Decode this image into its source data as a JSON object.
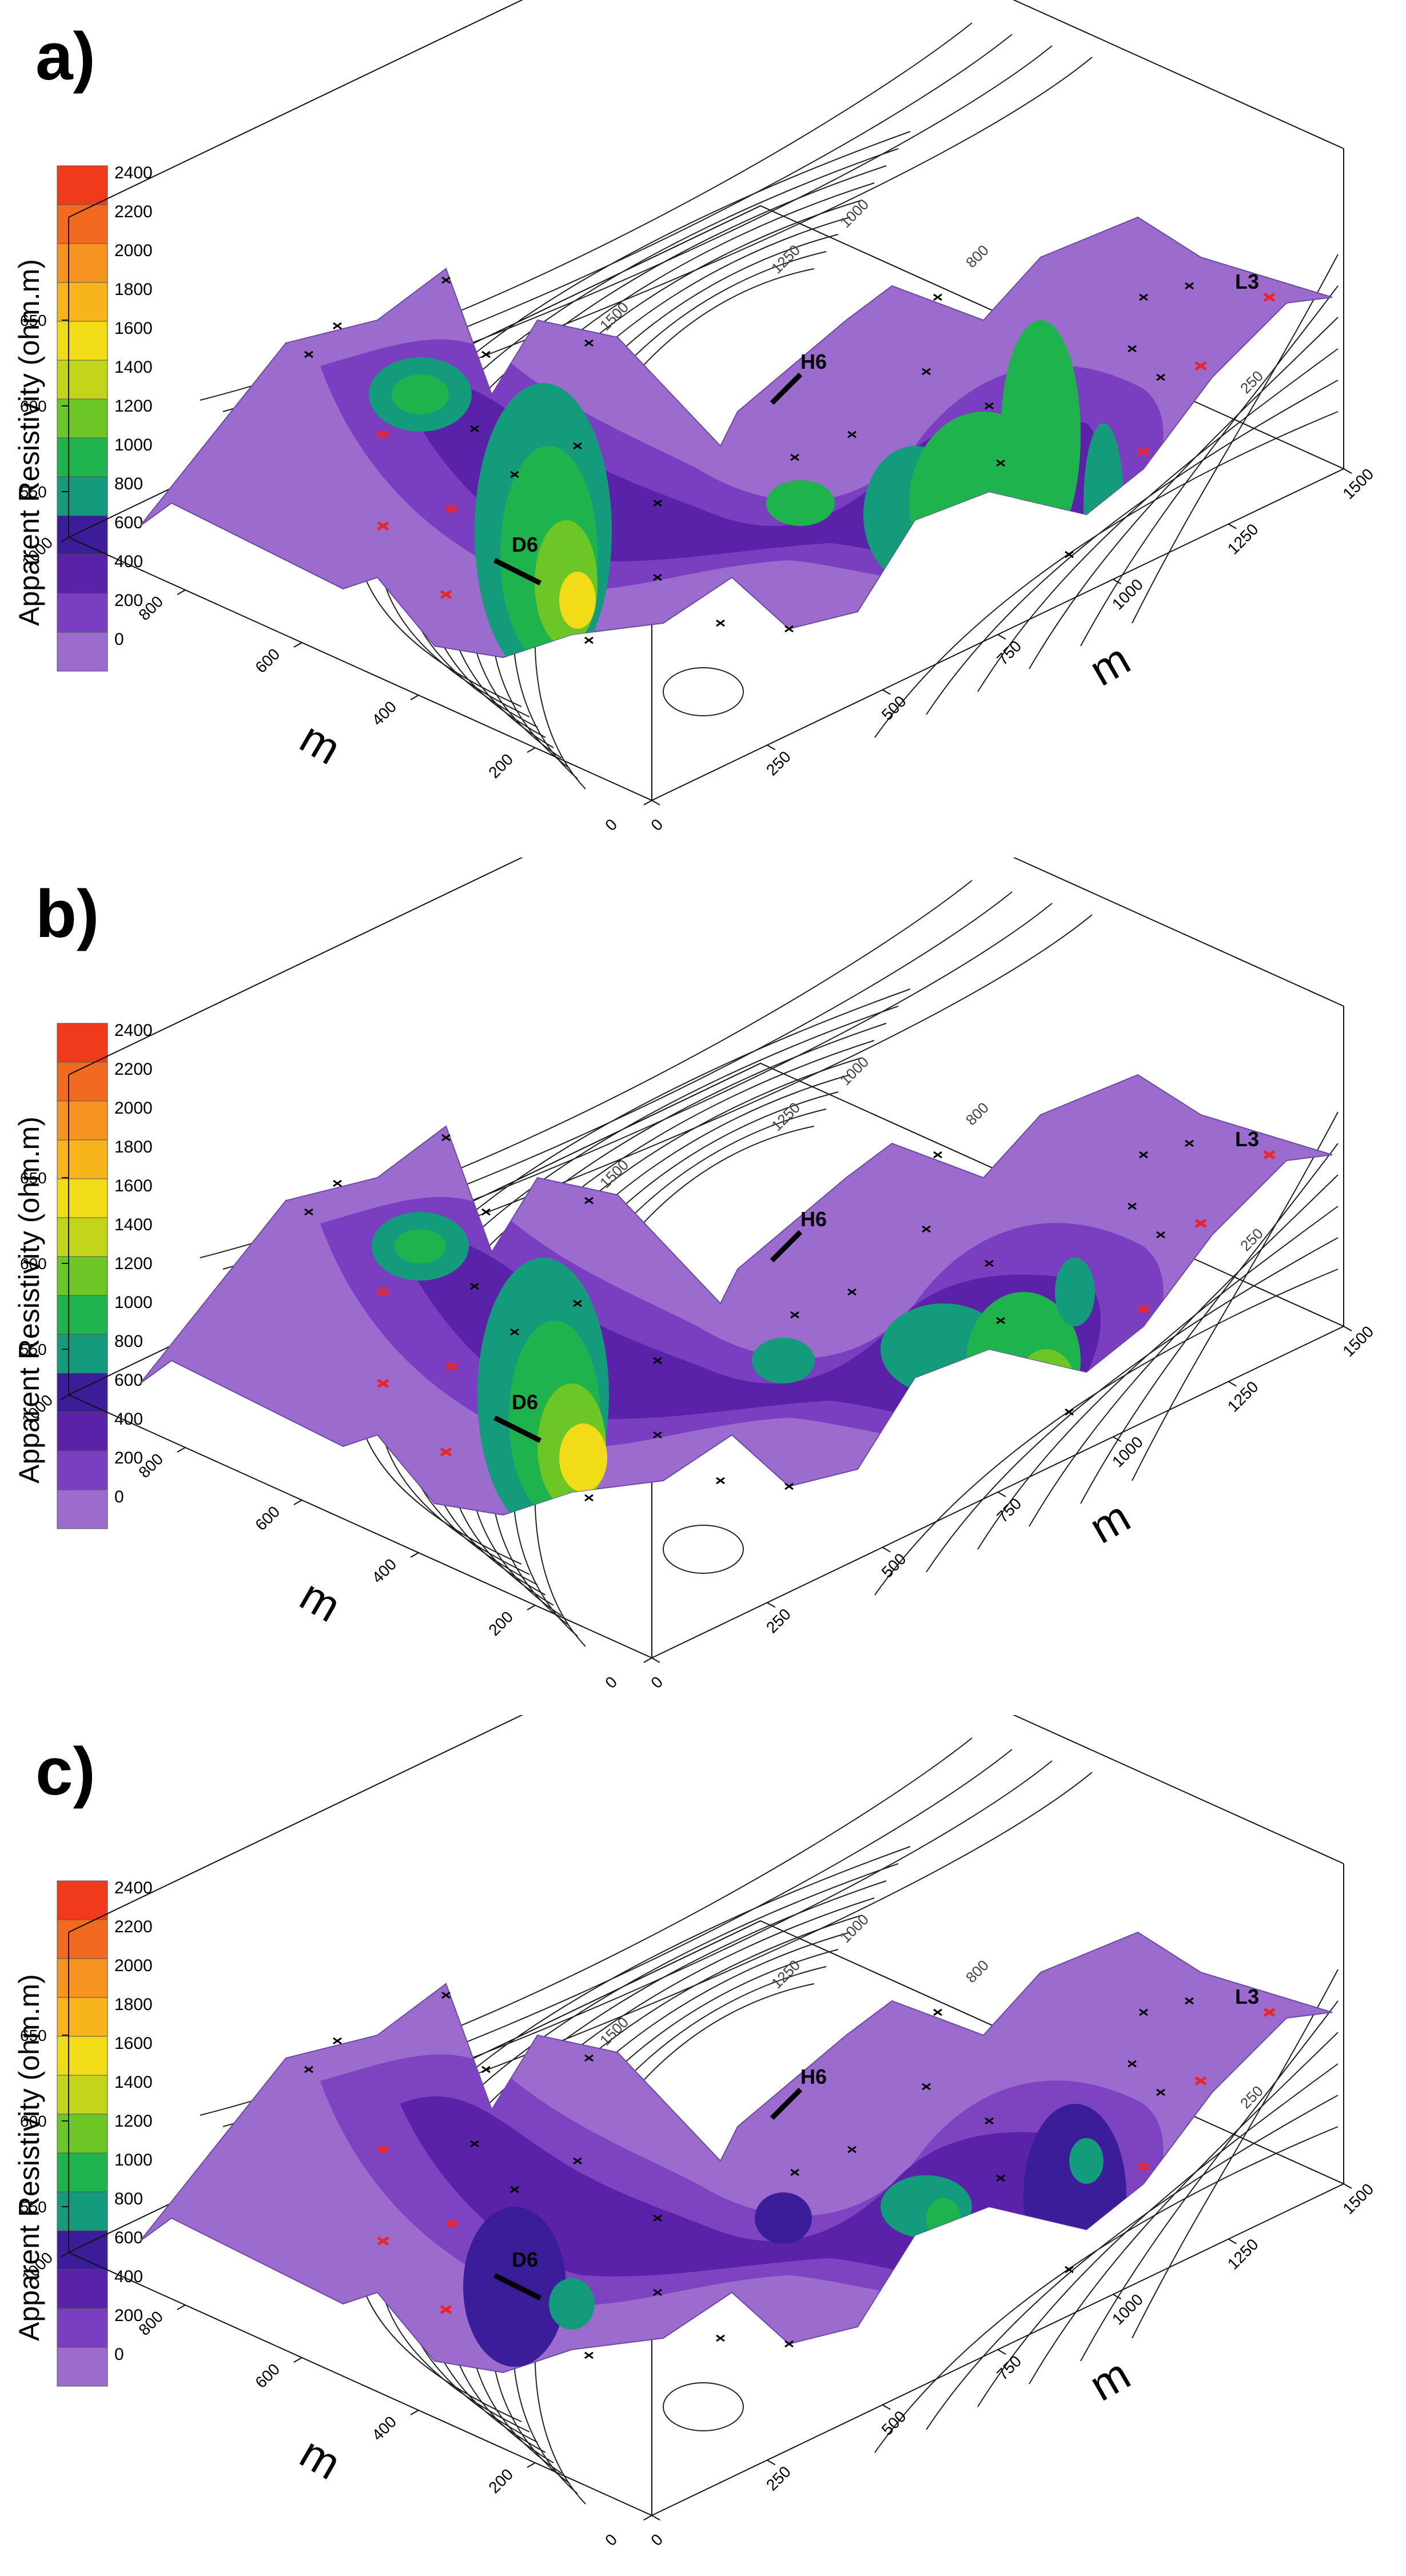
{
  "chart_data": [
    {
      "type": "surface-contour",
      "panel_label": "a)",
      "legend": {
        "title": "Apparent Resistivity (ohm.m)",
        "levels": [
          0,
          200,
          400,
          600,
          800,
          1000,
          1200,
          1400,
          1600,
          1800,
          2000,
          2200,
          2400
        ],
        "colors": [
          "#9b6ccd",
          "#7a3fc0",
          "#5a22a8",
          "#3b1d9a",
          "#149b7c",
          "#1fb34e",
          "#6cc726",
          "#c3d51a",
          "#f2dc18",
          "#f7b51b",
          "#f69421",
          "#f26a1f",
          "#ef3a1c"
        ]
      },
      "axes": {
        "x_label": "m",
        "x_ticks": [
          0,
          250,
          500,
          750,
          1000,
          1250,
          1500
        ],
        "y_label": "m",
        "y_ticks": [
          0,
          200,
          400,
          600,
          800,
          1000
        ],
        "z_ticks": [
          550,
          600,
          650
        ],
        "back_ticks": [
          1000,
          1250,
          1500,
          800,
          250
        ]
      },
      "annotations": [
        "D6",
        "H6",
        "L3"
      ]
    },
    {
      "type": "surface-contour",
      "panel_label": "b)",
      "legend": {
        "title": "Apparent Resistivity (ohm.m)",
        "levels": [
          0,
          200,
          400,
          600,
          800,
          1000,
          1200,
          1400,
          1600,
          1800,
          2000,
          2200,
          2400
        ],
        "colors": [
          "#9b6ccd",
          "#7a3fc0",
          "#5a22a8",
          "#3b1d9a",
          "#149b7c",
          "#1fb34e",
          "#6cc726",
          "#c3d51a",
          "#f2dc18",
          "#f7b51b",
          "#f69421",
          "#f26a1f",
          "#ef3a1c"
        ]
      },
      "axes": {
        "x_label": "m",
        "x_ticks": [
          0,
          250,
          500,
          750,
          1000,
          1250,
          1500
        ],
        "y_label": "m",
        "y_ticks": [
          0,
          200,
          400,
          600,
          800,
          1000
        ],
        "z_ticks": [
          550,
          600,
          650
        ],
        "back_ticks": [
          1000,
          1250,
          1500,
          800,
          250
        ]
      },
      "annotations": [
        "D6",
        "H6",
        "L3"
      ]
    },
    {
      "type": "surface-contour",
      "panel_label": "c)",
      "legend": {
        "title": "Apparent Resistivity (ohm.m)",
        "levels": [
          0,
          200,
          400,
          600,
          800,
          1000,
          1200,
          1400,
          1600,
          1800,
          2000,
          2200,
          2400
        ],
        "colors": [
          "#9b6ccd",
          "#7a3fc0",
          "#5a22a8",
          "#3b1d9a",
          "#149b7c",
          "#1fb34e",
          "#6cc726",
          "#c3d51a",
          "#f2dc18",
          "#f7b51b",
          "#f69421",
          "#f26a1f",
          "#ef3a1c"
        ]
      },
      "axes": {
        "x_label": "m",
        "x_ticks": [
          0,
          250,
          500,
          750,
          1000,
          1250,
          1500
        ],
        "y_label": "m",
        "y_ticks": [
          0,
          200,
          400,
          600,
          800,
          1000
        ],
        "z_ticks": [
          550,
          600,
          650
        ],
        "back_ticks": [
          1000,
          1250,
          1500,
          800,
          250
        ]
      },
      "annotations": [
        "D6",
        "H6",
        "L3"
      ]
    }
  ]
}
